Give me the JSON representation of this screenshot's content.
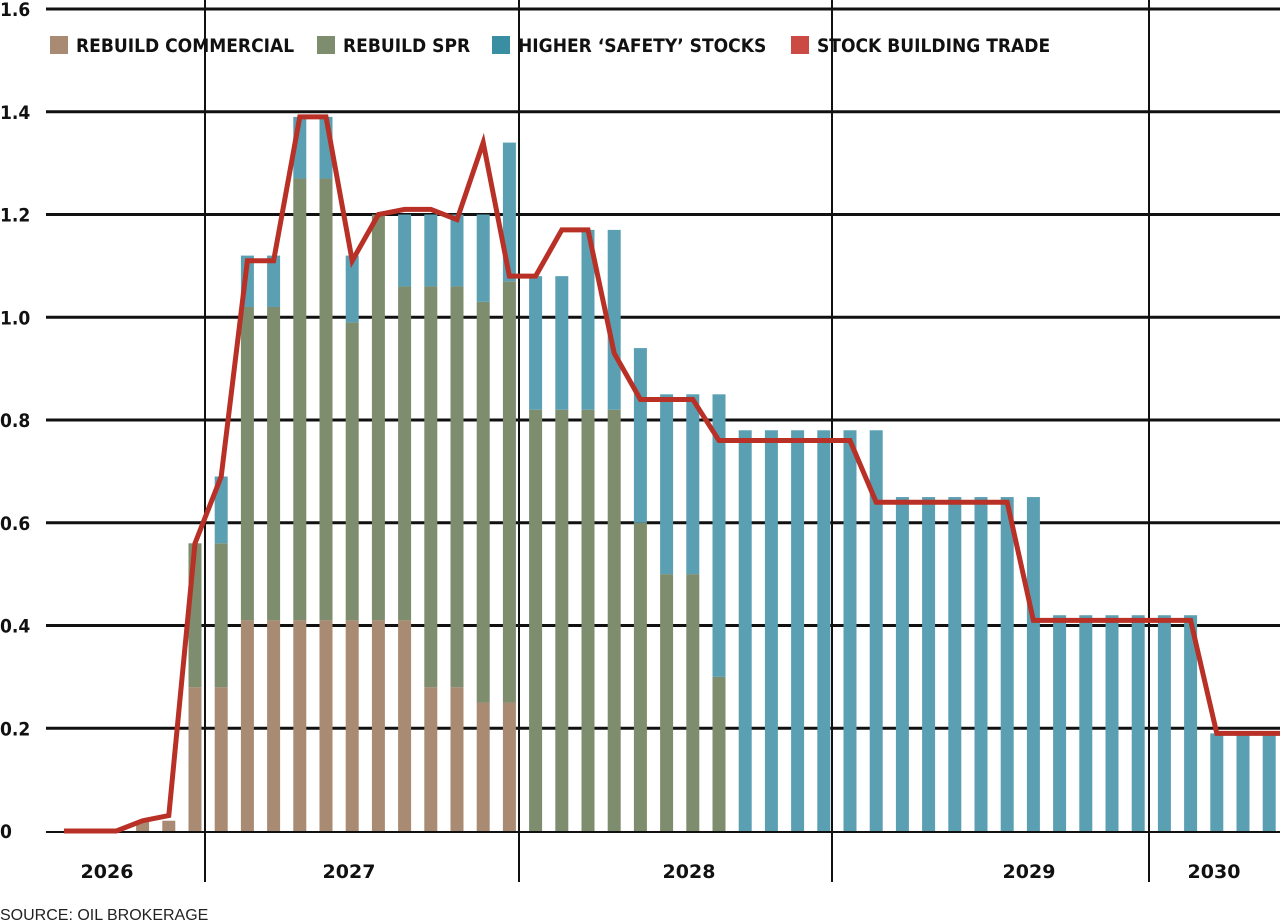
{
  "colors": {
    "commercial": "#a98a72",
    "spr": "#7d8d6e",
    "safety": "#5b9fb2",
    "line": "#b83026",
    "legend_safety": "#3a8ea2",
    "legend_line": "#cc4a44"
  },
  "source": "SOURCE: OIL BROKERAGE",
  "chart_data": {
    "type": "bar",
    "stacked": true,
    "ylim": [
      0,
      1.6
    ],
    "yticks": [
      "0",
      "0.2",
      "0.4",
      "0.6",
      "0.8",
      "1.0",
      "1.2",
      "1.4",
      "1.6"
    ],
    "grid": true,
    "legend_position": "top-left",
    "legend": [
      "REBUILD COMMERCIAL",
      "REBUILD SPR",
      "HIGHER ‘SAFETY’ STOCKS",
      "STOCK BUILDING TRADE"
    ],
    "years": [
      "2026",
      "2027",
      "2028",
      "2029",
      "2030"
    ],
    "series": [
      {
        "name": "REBUILD COMMERCIAL",
        "values": [
          0,
          0,
          0,
          0.02,
          0.02,
          0.28,
          0.28,
          0.41,
          0.41,
          0.41,
          0.41,
          0.41,
          0.41,
          0.41,
          0.28,
          0.28,
          0.25,
          0.25,
          0,
          0,
          0,
          0,
          0,
          0,
          0,
          0,
          0,
          0,
          0,
          0,
          0,
          0,
          0,
          0,
          0,
          0,
          0,
          0,
          0,
          0,
          0,
          0,
          0,
          0,
          0,
          0,
          0,
          0,
          0
        ]
      },
      {
        "name": "REBUILD SPR",
        "values": [
          0,
          0,
          0,
          0,
          0,
          0.28,
          0.28,
          0.61,
          0.61,
          0.86,
          0.86,
          0.58,
          0.79,
          0.65,
          0.78,
          0.78,
          0.78,
          0.82,
          0.82,
          0.82,
          0.82,
          0.82,
          0.6,
          0.5,
          0.5,
          0.3,
          0,
          0,
          0,
          0,
          0,
          0,
          0,
          0,
          0,
          0,
          0,
          0,
          0,
          0,
          0,
          0,
          0,
          0,
          0,
          0,
          0,
          0,
          0
        ]
      },
      {
        "name": "HIGHER ‘SAFETY’ STOCKS",
        "values": [
          0,
          0,
          0,
          0,
          0,
          0,
          0.13,
          0.1,
          0.1,
          0.12,
          0.12,
          0.13,
          0,
          0.14,
          0.14,
          0.14,
          0.17,
          0.27,
          0.26,
          0.26,
          0.35,
          0.35,
          0.34,
          0.35,
          0.35,
          0.55,
          0.78,
          0.78,
          0.78,
          0.78,
          0.78,
          0.78,
          0.65,
          0.65,
          0.65,
          0.65,
          0.65,
          0.65,
          0.42,
          0.42,
          0.42,
          0.42,
          0.42,
          0.42,
          0.19,
          0.19,
          0.19,
          0.19,
          0.19
        ]
      },
      {
        "name": "STOCK BUILDING TRADE",
        "type": "line",
        "values": [
          0,
          0,
          0,
          0.02,
          0.03,
          0.56,
          0.69,
          1.11,
          1.11,
          1.39,
          1.39,
          1.11,
          1.2,
          1.21,
          1.21,
          1.19,
          1.34,
          1.08,
          1.08,
          1.17,
          1.17,
          0.93,
          0.84,
          0.84,
          0.84,
          0.76,
          0.76,
          0.76,
          0.76,
          0.76,
          0.76,
          0.64,
          0.64,
          0.64,
          0.64,
          0.64,
          0.64,
          0.41,
          0.41,
          0.41,
          0.41,
          0.41,
          0.41,
          0.41,
          0.19,
          0.19,
          0.19,
          0.19,
          0.19
        ]
      }
    ]
  }
}
